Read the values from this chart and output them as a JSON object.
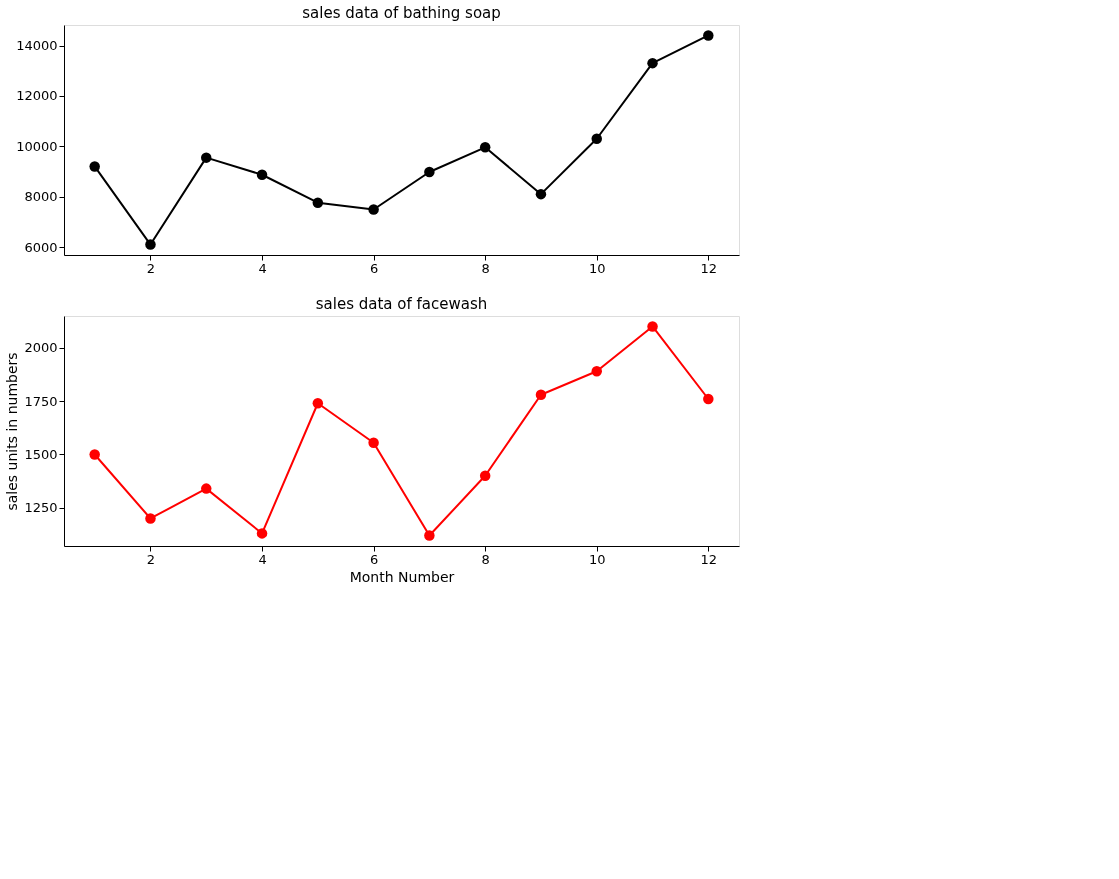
{
  "chart_data": [
    {
      "type": "line",
      "title": "sales data of bathing soap",
      "x": [
        1,
        2,
        3,
        4,
        5,
        6,
        7,
        8,
        9,
        10,
        11,
        12
      ],
      "series": [
        {
          "color": "#000000",
          "values": [
            9200,
            6100,
            9550,
            8870,
            7760,
            7490,
            8980,
            9960,
            8100,
            10300,
            13300,
            14400
          ]
        }
      ],
      "xlim": [
        0.45,
        12.55
      ],
      "xticks": [
        2,
        4,
        6,
        8,
        10,
        12
      ],
      "ylim": [
        5685,
        14815
      ],
      "yticks": [
        6000,
        8000,
        10000,
        12000,
        14000
      ],
      "marker": "circle",
      "line_style": "solid",
      "grid": false
    },
    {
      "type": "line",
      "title": "sales data of facewash",
      "xlabel": "Month Number",
      "ylabel": "sales units in numbers",
      "x": [
        1,
        2,
        3,
        4,
        5,
        6,
        7,
        8,
        9,
        10,
        11,
        12
      ],
      "series": [
        {
          "color": "#ff0000",
          "values": [
            1500,
            1200,
            1340,
            1130,
            1740,
            1555,
            1120,
            1400,
            1780,
            1890,
            2100,
            1760
          ]
        }
      ],
      "xlim": [
        0.45,
        12.55
      ],
      "xticks": [
        2,
        4,
        6,
        8,
        10,
        12
      ],
      "ylim": [
        1071,
        2149
      ],
      "yticks": [
        1250,
        1500,
        1750,
        2000
      ],
      "marker": "circle",
      "line_style": "solid",
      "grid": false
    }
  ]
}
